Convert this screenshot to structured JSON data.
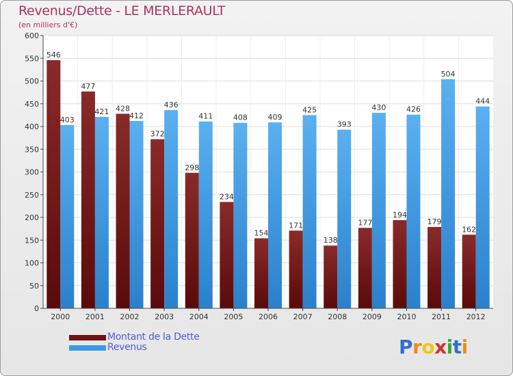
{
  "title": "Revenus/Dette - LE MERLERAULT",
  "subtitle": "(en milliers d'€)",
  "logo_letters": [
    "P",
    "r",
    "o",
    "x",
    "i",
    "t",
    "i"
  ],
  "logo_colors": [
    "#2f6fd6",
    "#f08a1c",
    "#f0c81c",
    "#d23030",
    "#36a836",
    "#2f6fd6",
    "#f08a1c"
  ],
  "chart_data": {
    "type": "bar",
    "categories": [
      "2000",
      "2001",
      "2002",
      "2003",
      "2004",
      "2005",
      "2006",
      "2007",
      "2008",
      "2009",
      "2010",
      "2011",
      "2012"
    ],
    "series": [
      {
        "name": "Montant de la Dette",
        "values": [
          546,
          477,
          428,
          372,
          298,
          234,
          154,
          171,
          138,
          177,
          194,
          179,
          162
        ],
        "color": "#7a1c1c"
      },
      {
        "name": "Revenus",
        "values": [
          403,
          421,
          412,
          436,
          411,
          408,
          409,
          425,
          393,
          430,
          426,
          504,
          444
        ],
        "color": "#3d9ae8"
      }
    ],
    "y_ticks": [
      0,
      50,
      100,
      150,
      200,
      250,
      300,
      350,
      400,
      450,
      500,
      550,
      600
    ],
    "ylim": [
      0,
      600
    ],
    "grid": true,
    "legend_position": "bottom-left"
  }
}
